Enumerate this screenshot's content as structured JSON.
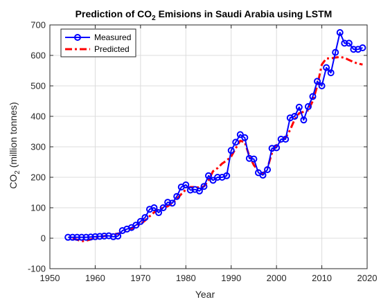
{
  "chart_data": {
    "type": "line",
    "title": {
      "prefix": "Prediction of CO",
      "sub": "2",
      "suffix": " Emisions in Saudi Arabia using LSTM"
    },
    "xlabel": "Year",
    "ylabel": {
      "prefix": "CO",
      "sub": "2",
      "suffix": " (million tonnes)"
    },
    "xlim": [
      1950,
      2020
    ],
    "ylim": [
      -100,
      700
    ],
    "xticks": [
      1950,
      1960,
      1970,
      1980,
      1990,
      2000,
      2010,
      2020
    ],
    "yticks": [
      -100,
      0,
      100,
      200,
      300,
      400,
      500,
      600,
      700
    ],
    "grid": true,
    "legend_position": "top-left",
    "series": [
      {
        "name": "Measured",
        "color": "#0000ff",
        "style": "solid-line-circle-markers",
        "x": [
          1954,
          1955,
          1956,
          1957,
          1958,
          1959,
          1960,
          1961,
          1962,
          1963,
          1964,
          1965,
          1966,
          1967,
          1968,
          1969,
          1970,
          1971,
          1972,
          1973,
          1974,
          1975,
          1976,
          1977,
          1978,
          1979,
          1980,
          1981,
          1982,
          1983,
          1984,
          1985,
          1986,
          1987,
          1988,
          1989,
          1990,
          1991,
          1992,
          1993,
          1994,
          1995,
          1996,
          1997,
          1998,
          1999,
          2000,
          2001,
          2002,
          2003,
          2004,
          2005,
          2006,
          2007,
          2008,
          2009,
          2010,
          2011,
          2012,
          2013,
          2014,
          2015,
          2016,
          2017,
          2018,
          2019
        ],
        "y": [
          3,
          3,
          3,
          3,
          3,
          4,
          5,
          6,
          7,
          8,
          5,
          7,
          25,
          30,
          35,
          43,
          55,
          68,
          95,
          100,
          84,
          100,
          118,
          115,
          137,
          168,
          175,
          158,
          160,
          155,
          170,
          205,
          190,
          200,
          200,
          205,
          288,
          315,
          340,
          330,
          262,
          260,
          215,
          207,
          225,
          295,
          297,
          325,
          325,
          395,
          400,
          430,
          388,
          432,
          465,
          515,
          500,
          560,
          543,
          610,
          675,
          640,
          640,
          620,
          620,
          625
        ]
      },
      {
        "name": "Predicted",
        "color": "#ff0000",
        "style": "dash-dot-line",
        "x": [
          1955,
          1956,
          1957,
          1958,
          1959,
          1960,
          1961,
          1962,
          1963,
          1964,
          1965,
          1966,
          1967,
          1968,
          1969,
          1970,
          1971,
          1972,
          1973,
          1974,
          1975,
          1976,
          1977,
          1978,
          1979,
          1980,
          1981,
          1982,
          1983,
          1984,
          1985,
          1986,
          1987,
          1988,
          1989,
          1990,
          1991,
          1992,
          1993,
          1994,
          1995,
          1996,
          1997,
          1998,
          1999,
          2000,
          2001,
          2002,
          2003,
          2004,
          2005,
          2006,
          2007,
          2008,
          2009,
          2010,
          2011,
          2012,
          2013,
          2014,
          2015,
          2016,
          2017,
          2018,
          2019
        ],
        "y": [
          -2,
          -5,
          -10,
          -8,
          -4,
          1,
          4,
          7,
          10,
          13,
          15,
          19,
          25,
          31,
          38,
          46,
          58,
          72,
          85,
          95,
          100,
          105,
          115,
          128,
          145,
          160,
          168,
          168,
          166,
          170,
          190,
          220,
          230,
          245,
          255,
          268,
          295,
          320,
          315,
          270,
          240,
          220,
          210,
          230,
          280,
          305,
          320,
          330,
          355,
          390,
          410,
          415,
          420,
          450,
          500,
          570,
          590,
          590,
          593,
          595,
          592,
          585,
          578,
          573,
          570
        ]
      }
    ]
  }
}
